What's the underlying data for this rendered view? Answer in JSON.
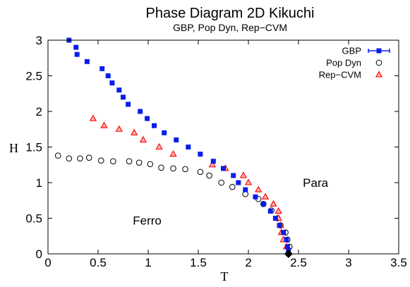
{
  "chart_data": {
    "type": "scatter",
    "title": "Phase Diagram 2D Kikuchi",
    "subtitle": "GBP, Pop Dyn, Rep−CVM",
    "xlabel": "T",
    "ylabel": "H",
    "xlim": [
      0,
      3.5
    ],
    "ylim": [
      0,
      3
    ],
    "xticks": [
      0,
      0.5,
      1,
      1.5,
      2,
      2.5,
      3,
      3.5
    ],
    "xtick_labels": [
      "0",
      "0.5",
      "1",
      "1.5",
      "2",
      "2.5",
      "3",
      "3.5"
    ],
    "yticks": [
      0,
      0.5,
      1,
      1.5,
      2,
      2.5,
      3
    ],
    "ytick_labels": [
      "0",
      "0.5",
      "1",
      "1.5",
      "2",
      "2.5",
      "3"
    ],
    "grid": false,
    "legend_position": "top-right",
    "series": [
      {
        "name": "GBP",
        "marker": "filled-square",
        "color": "#0a1ee8",
        "points": [
          [
            0.21,
            3.0
          ],
          [
            0.28,
            2.9
          ],
          [
            0.29,
            2.8
          ],
          [
            0.39,
            2.7
          ],
          [
            0.54,
            2.6
          ],
          [
            0.6,
            2.5
          ],
          [
            0.64,
            2.4
          ],
          [
            0.71,
            2.3
          ],
          [
            0.75,
            2.2
          ],
          [
            0.8,
            2.1
          ],
          [
            0.92,
            2.0
          ],
          [
            0.99,
            1.9
          ],
          [
            1.06,
            1.8
          ],
          [
            1.16,
            1.7
          ],
          [
            1.28,
            1.6
          ],
          [
            1.4,
            1.5
          ],
          [
            1.52,
            1.4
          ],
          [
            1.65,
            1.3
          ],
          [
            1.75,
            1.2
          ],
          [
            1.85,
            1.1
          ],
          [
            1.9,
            1.0
          ],
          [
            1.97,
            0.9
          ],
          [
            2.07,
            0.8
          ],
          [
            2.15,
            0.7
          ],
          [
            2.22,
            0.6
          ],
          [
            2.27,
            0.5
          ],
          [
            2.31,
            0.4
          ],
          [
            2.35,
            0.3
          ],
          [
            2.38,
            0.2
          ],
          [
            2.39,
            0.1
          ],
          [
            2.4,
            0.05
          ]
        ]
      },
      {
        "name": "Pop Dyn",
        "marker": "open-circle",
        "color": "#000000",
        "points": [
          [
            0.1,
            1.38
          ],
          [
            0.21,
            1.34
          ],
          [
            0.32,
            1.34
          ],
          [
            0.41,
            1.35
          ],
          [
            0.53,
            1.31
          ],
          [
            0.65,
            1.3
          ],
          [
            0.81,
            1.3
          ],
          [
            0.91,
            1.28
          ],
          [
            1.02,
            1.26
          ],
          [
            1.13,
            1.21
          ],
          [
            1.25,
            1.2
          ],
          [
            1.37,
            1.19
          ],
          [
            1.52,
            1.15
          ],
          [
            1.61,
            1.1
          ],
          [
            1.73,
            1.0
          ],
          [
            1.84,
            0.94
          ],
          [
            1.97,
            0.84
          ],
          [
            2.1,
            0.77
          ],
          [
            2.15,
            0.7
          ],
          [
            2.23,
            0.61
          ],
          [
            2.29,
            0.5
          ],
          [
            2.32,
            0.4
          ],
          [
            2.37,
            0.3
          ],
          [
            2.39,
            0.2
          ],
          [
            2.41,
            0.1
          ]
        ]
      },
      {
        "name": "Rep−CVM",
        "marker": "open-triangle",
        "color": "#ff0000",
        "points": [
          [
            0.45,
            1.9
          ],
          [
            0.56,
            1.8
          ],
          [
            0.71,
            1.75
          ],
          [
            0.86,
            1.7
          ],
          [
            0.95,
            1.6
          ],
          [
            1.11,
            1.5
          ],
          [
            1.25,
            1.4
          ],
          [
            1.64,
            1.25
          ],
          [
            1.77,
            1.2
          ],
          [
            1.95,
            1.1
          ],
          [
            2.0,
            1.0
          ],
          [
            2.1,
            0.9
          ],
          [
            2.17,
            0.8
          ],
          [
            2.25,
            0.7
          ],
          [
            2.3,
            0.6
          ],
          [
            2.3,
            0.5
          ],
          [
            2.32,
            0.4
          ],
          [
            2.33,
            0.3
          ],
          [
            2.35,
            0.2
          ],
          [
            2.38,
            0.1
          ]
        ]
      },
      {
        "marker": "filled-diamond",
        "color": "#000000",
        "points": [
          [
            2.4,
            0.0
          ]
        ]
      }
    ],
    "annotations": [
      {
        "text": "Para",
        "x": 2.67,
        "y": 1.0
      },
      {
        "text": "Ferro",
        "x": 0.99,
        "y": 0.47
      }
    ]
  }
}
